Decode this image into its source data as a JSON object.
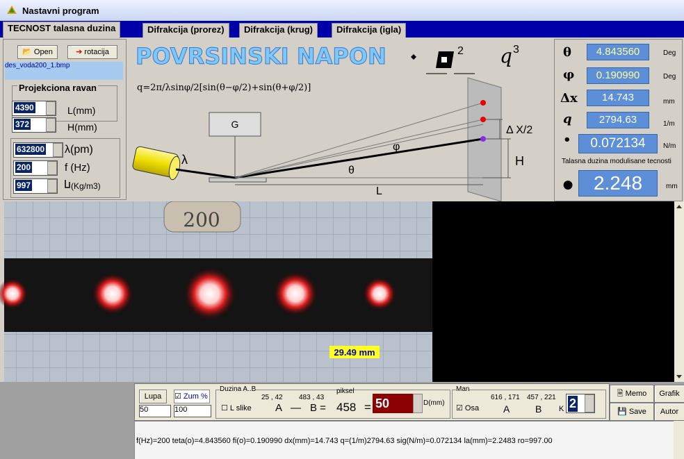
{
  "window": {
    "title": "Nastavni program"
  },
  "tabs": [
    "TECNOST talasna duzina",
    "Difrakcija (prorez)",
    "Difrakcija (krug)",
    "Difrakcija (igla)"
  ],
  "left_panel": {
    "open": "Open",
    "rotate": "rotacija",
    "file": "des_voda200_1.bmp",
    "group": "Projekciona ravan",
    "fields": [
      {
        "value": "4390",
        "label": "L(mm)"
      },
      {
        "value": "372",
        "label": "H(mm)"
      },
      {
        "value": "632800",
        "label": "λ(pm)"
      },
      {
        "value": "200",
        "label": "f (Hz)"
      },
      {
        "value": "997",
        "label": "(Kg/m3)"
      }
    ]
  },
  "banner": {
    "title": "POVRSINSKI NAPON",
    "formula": "q=2π/λsinφ/2[sin(θ−φ/2)+sin(θ+φ/2)]",
    "sup1": "2",
    "q": "q",
    "sup2": "3",
    "diagram": {
      "g": "G",
      "lambda": "λ",
      "phi": "φ",
      "theta": "θ",
      "l": "L",
      "dx": "Δ X/2",
      "h": "H"
    }
  },
  "readouts": [
    {
      "symbol": "θ",
      "value": "4.843560",
      "unit": "Deg"
    },
    {
      "symbol": "φ",
      "value": "0.190990",
      "unit": "Deg"
    },
    {
      "symbol": "Δx",
      "value": "14.743",
      "unit": "mm"
    },
    {
      "symbol": "q",
      "value": "2794.63",
      "unit": "1/m"
    },
    {
      "symbol": "•",
      "value": "0.072134",
      "unit": "N/m"
    }
  ],
  "wavelength": {
    "caption": "Talasna duzina modulisane tecnosti",
    "value": "2.248",
    "unit": "mm"
  },
  "image": {
    "tag": "200",
    "measure": "29.49 mm"
  },
  "controls": {
    "lupa": "Lupa",
    "lupa_value": "50",
    "zum": "Zum %",
    "zum_value": "100",
    "ab": {
      "title": "Duzina A..B",
      "p1": "25 , 42",
      "p2": "483 , 43",
      "lslike": "L slike",
      "a": "A",
      "dash": "—",
      "b": "B =",
      "len": "458",
      "eq": "=",
      "piksel": "piksel",
      "d": "50",
      "dmm": "D(mm)"
    },
    "man": {
      "title": "Man",
      "osa": "Osa",
      "p1": "616 , 171",
      "p2": "457 , 221",
      "a": "A",
      "b": "B",
      "k": "K",
      "k_value": "2"
    },
    "buttons": [
      "Memo",
      "Grafik",
      "Save",
      "Autor"
    ]
  },
  "status": "f(Hz)=200 teta(o)=4.843560 fi(o)=0.190990 dx(mm)=14.743 q=(1/m)2794.63 sig(N/m)=0.072134 la(mm)=2.2483 ro=997.00"
}
